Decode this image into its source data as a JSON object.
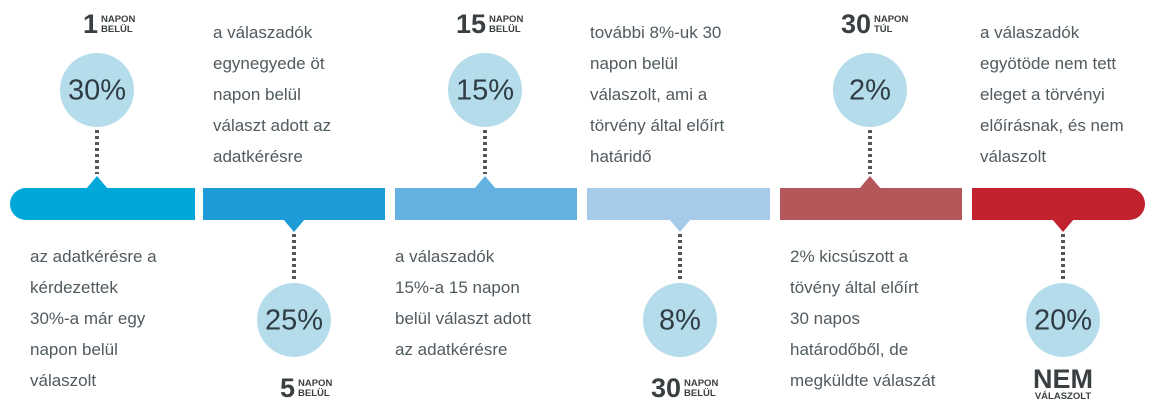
{
  "segments": [
    {
      "color": "#00a8da",
      "percent": "30%",
      "label": {
        "big": "1",
        "small": [
          "NAPON",
          "BELÜL"
        ]
      },
      "description": [
        "az adatkérésre a",
        "kérdezettek",
        "30%-a már egy",
        "napon belül",
        "válaszolt"
      ]
    },
    {
      "color": "#1f9cd8",
      "percent": "25%",
      "label": {
        "big": "5",
        "small": [
          "NAPON",
          "BELÜL"
        ]
      },
      "description": [
        "a válaszadók",
        "egynegyede öt",
        "napon belül",
        "választ adott az",
        "adatkérésre"
      ]
    },
    {
      "color": "#62b1e1",
      "percent": "15%",
      "label": {
        "big": "15",
        "small": [
          "NAPON",
          "BELÜL"
        ]
      },
      "description": [
        "a válaszadók",
        "15%-a 15 napon",
        "belül választ adott",
        "az adatkérésre"
      ]
    },
    {
      "color": "#a6cbea",
      "percent": "8%",
      "label": {
        "big": "30",
        "small": [
          "NAPON",
          "BELÜL"
        ]
      },
      "description": [
        "további 8%-uk 30",
        "napon belül",
        "válaszolt, ami a",
        "törvény által előírt",
        "határidő"
      ]
    },
    {
      "color": "#b3575b",
      "percent": "2%",
      "label": {
        "big": "30",
        "small": [
          "NAPON",
          "TÚL"
        ]
      },
      "description": [
        "2% kicsúszott a",
        "tövény által előírt",
        "30 napos",
        "határodőből, de",
        "megküldte válaszát"
      ]
    },
    {
      "color": "#c1222e",
      "percent": "20%",
      "label": {
        "big": "NEM",
        "small": [
          "VÁLASZOLT"
        ]
      },
      "description": [
        "a válaszadók",
        "egyötöde nem tett",
        "eleget a törvényi",
        "előírásnak, és nem",
        "válaszolt"
      ]
    }
  ]
}
